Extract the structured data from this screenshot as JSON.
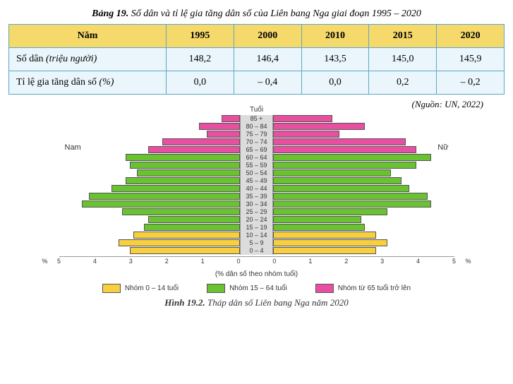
{
  "table": {
    "title_bold": "Bảng 19.",
    "title_rest": " Số dân và tỉ lệ gia tăng dân số của Liên bang Nga giai đoạn 1995 – 2020",
    "header_bg": "#f5d96b",
    "body_bg": "#eaf6fb",
    "border_color": "#5aa8c8",
    "columns": [
      "Năm",
      "1995",
      "2000",
      "2010",
      "2015",
      "2020"
    ],
    "rows": [
      {
        "label": "Số dân ",
        "label_ital": "(triệu người)",
        "cells": [
          "148,2",
          "146,4",
          "143,5",
          "145,0",
          "145,9"
        ]
      },
      {
        "label": "Tỉ lệ gia tăng dân số ",
        "label_ital": "(%)",
        "cells": [
          "0,0",
          "– 0,4",
          "0,0",
          "0,2",
          "– 0,2"
        ]
      }
    ],
    "source": "(Nguồn: UN, 2022)"
  },
  "chart": {
    "top_title": "Tuổi",
    "left_label": "Nam",
    "right_label": "Nữ",
    "x_label": "(% dân số theo nhóm tuổi)",
    "x_max": 5,
    "x_ticks": [
      "5",
      "4",
      "3",
      "2",
      "1",
      "0",
      "0",
      "1",
      "2",
      "3",
      "4",
      "5"
    ],
    "pct_symbol": "%",
    "colors": {
      "young": "#f7cf3f",
      "working": "#69c22f",
      "old": "#e84fa0",
      "grid_bg": "#dcdcdc"
    },
    "groups": [
      {
        "age": "85 +",
        "male": 0.5,
        "female": 1.6,
        "band": "old"
      },
      {
        "age": "80 – 84",
        "male": 1.1,
        "female": 2.5,
        "band": "old"
      },
      {
        "age": "75 – 79",
        "male": 0.9,
        "female": 1.8,
        "band": "old"
      },
      {
        "age": "70 – 74",
        "male": 2.1,
        "female": 3.6,
        "band": "old"
      },
      {
        "age": "65 – 69",
        "male": 2.5,
        "female": 3.9,
        "band": "old"
      },
      {
        "age": "60 – 64",
        "male": 3.1,
        "female": 4.3,
        "band": "working"
      },
      {
        "age": "55 – 59",
        "male": 3.0,
        "female": 3.9,
        "band": "working"
      },
      {
        "age": "50 – 54",
        "male": 2.8,
        "female": 3.2,
        "band": "working"
      },
      {
        "age": "45 – 49",
        "male": 3.1,
        "female": 3.5,
        "band": "working"
      },
      {
        "age": "40 – 44",
        "male": 3.5,
        "female": 3.7,
        "band": "working"
      },
      {
        "age": "35 – 39",
        "male": 4.1,
        "female": 4.2,
        "band": "working"
      },
      {
        "age": "30 – 34",
        "male": 4.3,
        "female": 4.3,
        "band": "working"
      },
      {
        "age": "25 – 29",
        "male": 3.2,
        "female": 3.1,
        "band": "working"
      },
      {
        "age": "20 – 24",
        "male": 2.5,
        "female": 2.4,
        "band": "working"
      },
      {
        "age": "15 – 19",
        "male": 2.6,
        "female": 2.5,
        "band": "working"
      },
      {
        "age": "10 – 14",
        "male": 2.9,
        "female": 2.8,
        "band": "young"
      },
      {
        "age": "5 – 9",
        "male": 3.3,
        "female": 3.1,
        "band": "young"
      },
      {
        "age": "0 – 4",
        "male": 3.0,
        "female": 2.8,
        "band": "young"
      }
    ],
    "legend": [
      {
        "swatch": "young",
        "label": "Nhóm 0 – 14 tuổi"
      },
      {
        "swatch": "working",
        "label": "Nhóm 15 – 64 tuổi"
      },
      {
        "swatch": "old",
        "label": "Nhóm từ 65 tuổi trở lên"
      }
    ],
    "caption_bold": "Hình 19.2.",
    "caption_rest": " Tháp dân số Liên bang Nga năm 2020"
  }
}
